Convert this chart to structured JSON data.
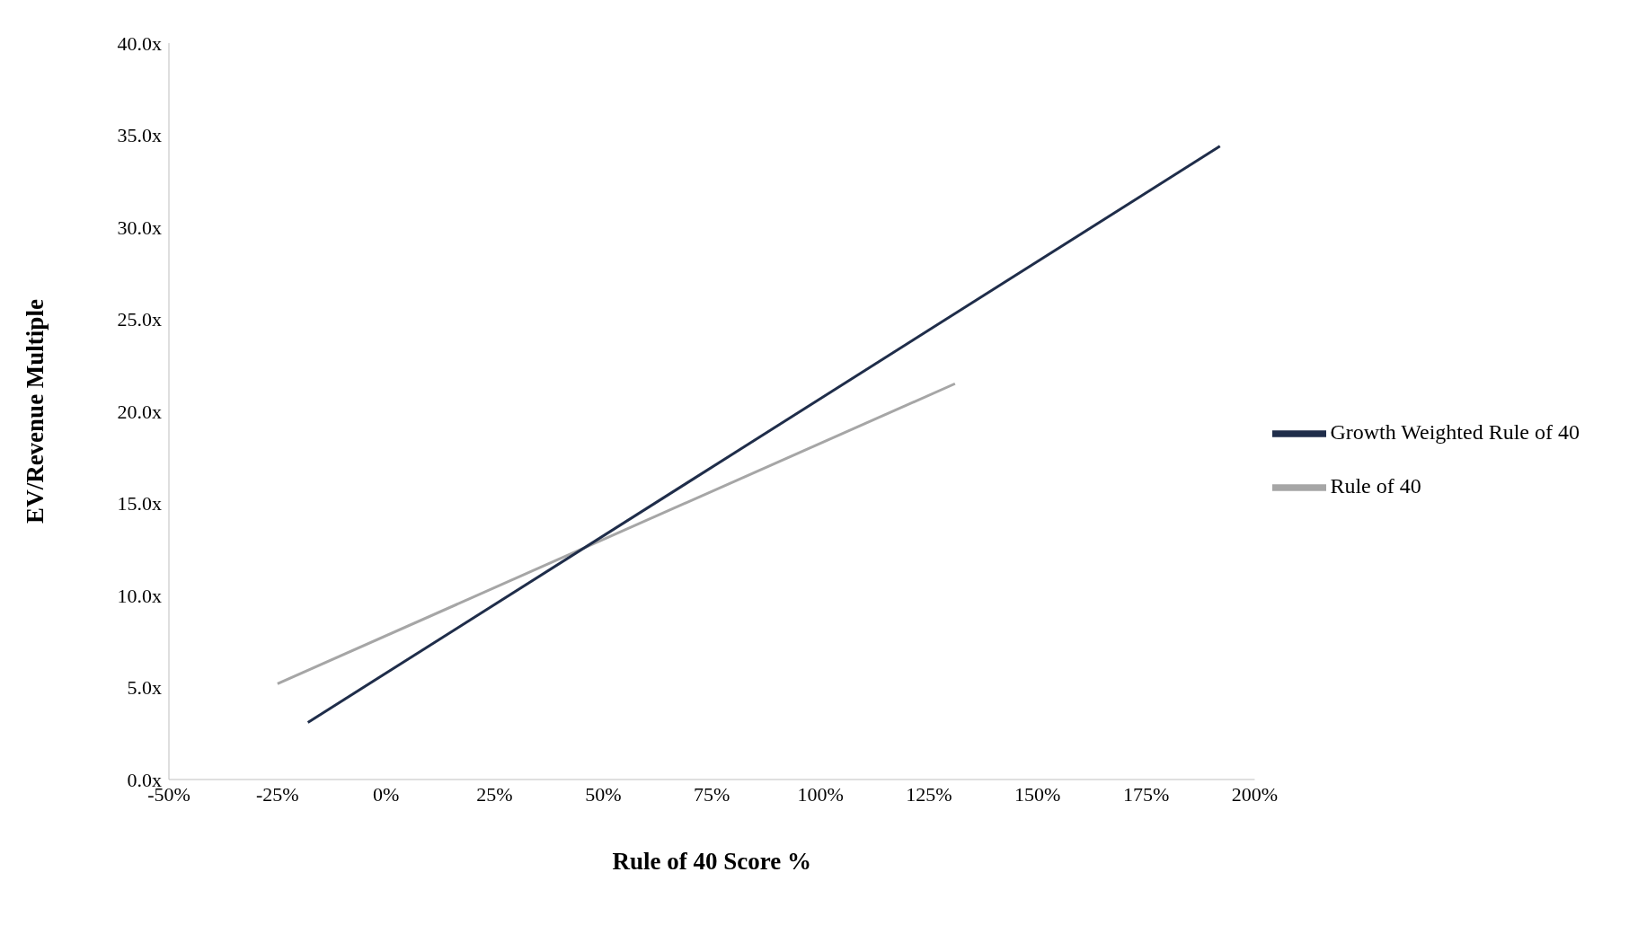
{
  "chart_data": {
    "type": "line",
    "xlabel": "Rule of 40 Score %",
    "ylabel": "EV/Revenue Multiple",
    "series": [
      {
        "name": "Rule of 40",
        "color": "#a6a6a6",
        "x": [
          -25,
          131
        ],
        "values": [
          5.2,
          21.5
        ]
      },
      {
        "name": "Growth Weighted Rule of 40",
        "color": "#1f2d4a",
        "x": [
          -18,
          192
        ],
        "values": [
          3.1,
          34.4
        ]
      }
    ],
    "xlim": [
      -50,
      200
    ],
    "xticks": [
      {
        "value": -50,
        "label": "-50%"
      },
      {
        "value": -25,
        "label": "-25%"
      },
      {
        "value": 0,
        "label": "0%"
      },
      {
        "value": 25,
        "label": "25%"
      },
      {
        "value": 50,
        "label": "50%"
      },
      {
        "value": 75,
        "label": "75%"
      },
      {
        "value": 100,
        "label": "100%"
      },
      {
        "value": 125,
        "label": "125%"
      },
      {
        "value": 150,
        "label": "150%"
      },
      {
        "value": 175,
        "label": "175%"
      },
      {
        "value": 200,
        "label": "200%"
      }
    ],
    "ylim": [
      0,
      40
    ],
    "yticks": [
      {
        "value": 0,
        "label": "0.0x"
      },
      {
        "value": 5,
        "label": "5.0x"
      },
      {
        "value": 10,
        "label": "10.0x"
      },
      {
        "value": 15,
        "label": "15.0x"
      },
      {
        "value": 20,
        "label": "20.0x"
      },
      {
        "value": 25,
        "label": "25.0x"
      },
      {
        "value": 30,
        "label": "30.0x"
      },
      {
        "value": 35,
        "label": "35.0x"
      },
      {
        "value": 40,
        "label": "40.0x"
      }
    ],
    "grid": false,
    "legend": "right",
    "marker": "none",
    "line_style": "solid"
  }
}
